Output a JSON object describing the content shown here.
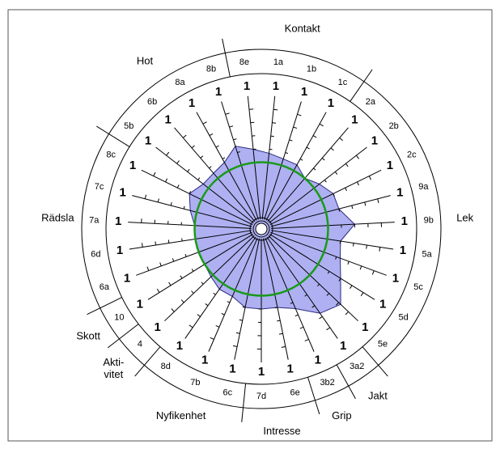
{
  "chart_data": {
    "type": "radar",
    "groups": [
      {
        "name": "Kontakt",
        "categories": [
          "8e",
          "1a",
          "1b",
          "1c"
        ],
        "values": [
          0.6,
          0.57,
          0.55,
          0.55
        ]
      },
      {
        "name": "Lek",
        "categories": [
          "2a",
          "2b",
          "2c",
          "9a",
          "9b",
          "5a",
          "5c",
          "5d",
          "5e"
        ],
        "values": [
          0.5,
          0.55,
          0.6,
          0.6,
          0.7,
          0.6,
          0.63,
          0.7,
          0.82
        ]
      },
      {
        "name": "Jakt",
        "categories": [
          "3a2"
        ],
        "values": [
          0.77
        ]
      },
      {
        "name": "Grip",
        "categories": [
          "3b2"
        ],
        "values": [
          0.65
        ]
      },
      {
        "name": "Intresse",
        "categories": [
          "6e",
          "7d"
        ],
        "values": [
          0.6,
          0.6
        ]
      },
      {
        "name": "Nyfikenhet",
        "categories": [
          "6c",
          "7b",
          "8d"
        ],
        "values": [
          0.6,
          0.55,
          0.55
        ]
      },
      {
        "name": "Akti-\nvitet",
        "categories": [
          "4"
        ],
        "values": [
          0.52
        ]
      },
      {
        "name": "Skott",
        "categories": [
          "10"
        ],
        "values": [
          0.5
        ]
      },
      {
        "name": "Rädsla",
        "categories": [
          "6a",
          "6d",
          "7a",
          "7c",
          "8c"
        ],
        "values": [
          0.5,
          0.5,
          0.5,
          0.55,
          0.6
        ]
      },
      {
        "name": "Hot",
        "categories": [
          "5b",
          "6b",
          "8a",
          "8b"
        ],
        "values": [
          0.55,
          0.55,
          0.57,
          0.65
        ]
      }
    ],
    "rlim": [
      0,
      1
    ],
    "rticks": [
      1
    ],
    "rminor_ticks": [
      0.6,
      0.7,
      0.8,
      0.9
    ],
    "reference": 0.5,
    "reference_color": "#1a9a1a",
    "fill": "#aeb0f2",
    "stroke": "#2a2a80"
  }
}
